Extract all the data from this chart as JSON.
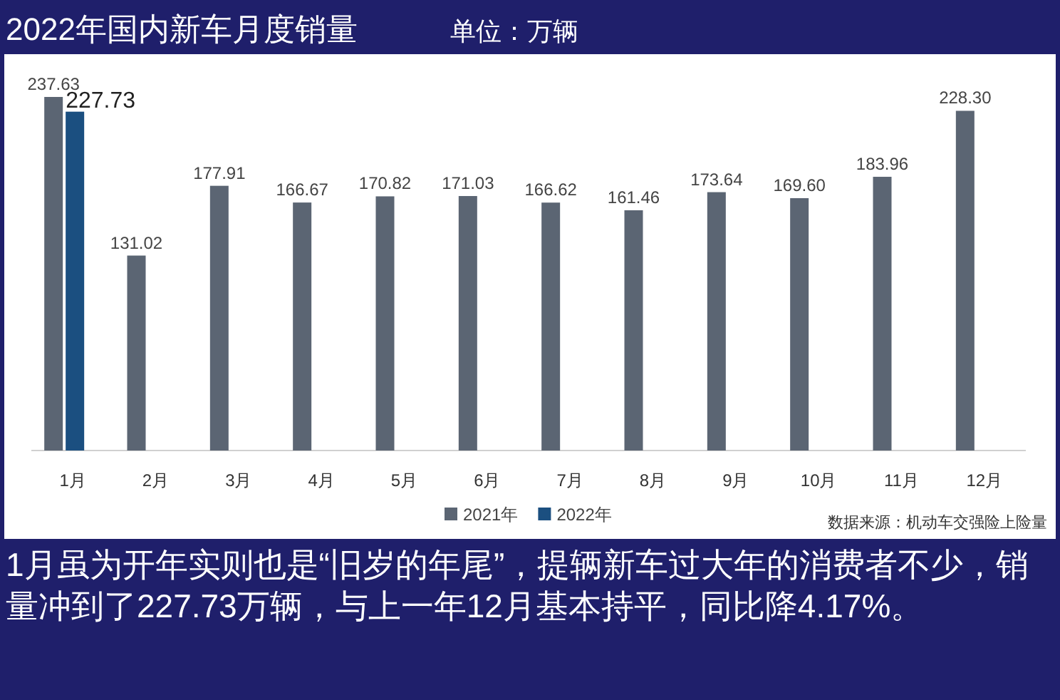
{
  "chart_data": {
    "type": "bar",
    "title": "2022年国内新车月度销量",
    "subtitle": "单位：万辆",
    "categories": [
      "1月",
      "2月",
      "3月",
      "4月",
      "5月",
      "6月",
      "7月",
      "8月",
      "9月",
      "10月",
      "11月",
      "12月"
    ],
    "series": [
      {
        "name": "2021年",
        "color": "#5b6573",
        "values": [
          237.63,
          131.02,
          177.91,
          166.67,
          170.82,
          171.03,
          166.62,
          161.46,
          173.64,
          169.6,
          183.96,
          228.3
        ],
        "value_labels": [
          "237.63",
          "131.02",
          "177.91",
          "166.67",
          "170.82",
          "171.03",
          "166.62",
          "161.46",
          "173.64",
          "169.60",
          "183.96",
          "228.30"
        ]
      },
      {
        "name": "2022年",
        "color": "#1b4f80",
        "values": [
          227.73,
          null,
          null,
          null,
          null,
          null,
          null,
          null,
          null,
          null,
          null,
          null
        ],
        "value_labels": [
          "227.73",
          null,
          null,
          null,
          null,
          null,
          null,
          null,
          null,
          null,
          null,
          null
        ]
      }
    ],
    "legend": "bottom",
    "annotations": [
      "数据来源：机动车交强险上险量",
      "1月虽为开年实则也是“旧岁的年尾”，提辆新车过大年的消费者不少，销量冲到了227.73万辆，与上一年12月基本持平，同比降4.17%。"
    ]
  }
}
